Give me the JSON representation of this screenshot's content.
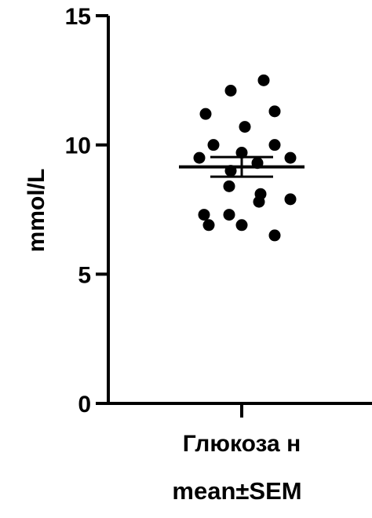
{
  "chart_data": {
    "type": "scatter",
    "categories": [
      "Глюкоза н"
    ],
    "ylabel": "mmol/L",
    "ylim": [
      0,
      15
    ],
    "yticks": [
      0,
      5,
      10,
      15
    ],
    "grid": false,
    "caption": "mean±SEM",
    "colors": {
      "points": "#000000",
      "axis": "#000000",
      "background": "#ffffff"
    },
    "series": [
      {
        "category": "Глюкоза н",
        "values": [
          12.5,
          12.1,
          11.3,
          11.2,
          10.7,
          10.0,
          10.0,
          9.7,
          9.5,
          9.5,
          9.3,
          9.0,
          8.4,
          8.1,
          7.9,
          7.8,
          7.3,
          7.3,
          6.9,
          6.9,
          6.5
        ],
        "mean": 9.15,
        "sem": 0.38
      }
    ]
  }
}
